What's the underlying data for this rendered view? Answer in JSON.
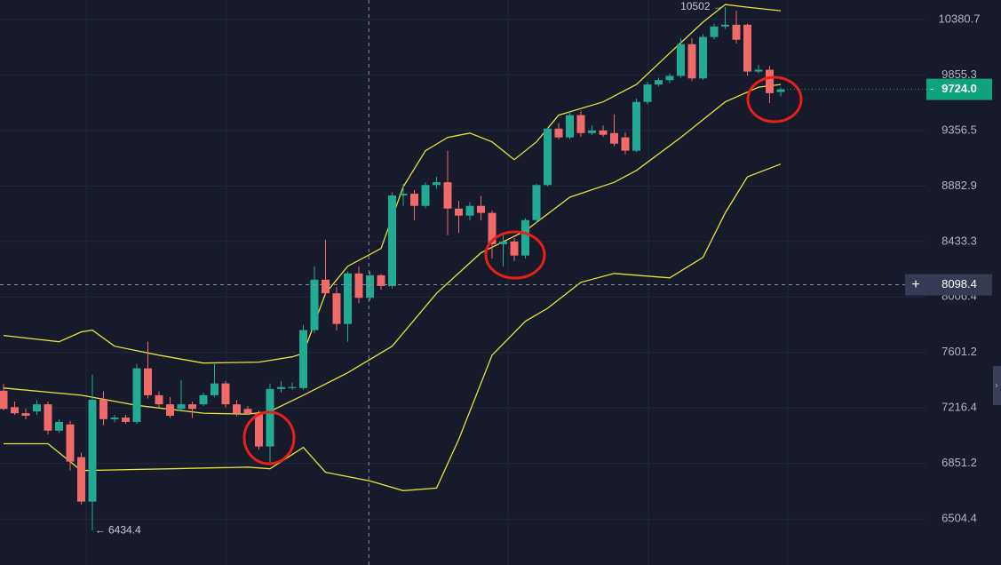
{
  "chart_data": {
    "type": "candlestick",
    "log_scale": true,
    "grid": true,
    "ylim": [
      6230,
      10572
    ],
    "yticks": [
      10380.7,
      9855.3,
      9356.5,
      8882.9,
      8433.3,
      8006.4,
      7601.2,
      7216.4,
      6851.2,
      6504.4
    ],
    "up_color": "#22ab94",
    "down_color": "#f06a6a",
    "series": [
      {
        "open": [
          7334,
          7222,
          7181,
          7193,
          7241,
          7065,
          7106,
          6892,
          6611,
          7272,
          7141,
          7152,
          7123,
          7489,
          7303,
          7241,
          7210,
          7241,
          7241,
          7303,
          7384,
          7241,
          7210,
          7181,
          6961,
          7346,
          7352,
          7352,
          7762,
          8137,
          8034,
          7807,
          8185,
          8000,
          8171,
          8089,
          8804,
          8819,
          8719,
          8891,
          8914,
          8697,
          8640,
          8719,
          8662,
          8412,
          8433,
          8323,
          8604,
          8891,
          9373,
          9296,
          9492,
          9334,
          9357,
          9334,
          9296,
          9181,
          9610,
          9768,
          9808,
          9847,
          10144,
          9824,
          10212,
          10313,
          10330,
          10330,
          9887,
          9904,
          9700
        ],
        "high": [
          7380,
          7260,
          7210,
          7270,
          7260,
          7140,
          7130,
          6920,
          7446,
          7330,
          7170,
          7170,
          7520,
          7678,
          7330,
          7290,
          7408,
          7260,
          7320,
          7520,
          7400,
          7270,
          7230,
          7200,
          7384,
          7400,
          7390,
          7800,
          8240,
          8447,
          8080,
          8200,
          8240,
          8200,
          8180,
          8830,
          8900,
          8850,
          8914,
          8960,
          9181,
          8760,
          8750,
          8800,
          8680,
          8480,
          8460,
          8620,
          8900,
          9380,
          9420,
          9530,
          9530,
          9400,
          9400,
          9500,
          9340,
          9640,
          9790,
          9830,
          9870,
          10200,
          10200,
          10240,
          10340,
          10502,
          10466,
          10340,
          9950,
          9940,
          9740
        ],
        "low": [
          7200,
          7170,
          7140,
          7170,
          7040,
          7050,
          6806,
          6594,
          6435,
          7100,
          7120,
          7110,
          7110,
          7280,
          7220,
          7150,
          7190,
          7150,
          7230,
          7290,
          7220,
          7160,
          7170,
          6940,
          6851,
          7320,
          7340,
          7340,
          7740,
          8020,
          7760,
          7678,
          7960,
          7980,
          8060,
          8070,
          8720,
          8604,
          8700,
          8860,
          8483,
          8500,
          8600,
          8600,
          8300,
          8240,
          8280,
          8300,
          8580,
          8880,
          9280,
          9280,
          9300,
          9320,
          9300,
          9220,
          9150,
          9170,
          9590,
          9750,
          9780,
          9830,
          9800,
          9810,
          10190,
          10290,
          10150,
          9850,
          9870,
          9600,
          9660
        ],
        "close": [
          7210,
          7181,
          7164,
          7241,
          7065,
          7123,
          6863,
          6611,
          7272,
          7141,
          7152,
          7123,
          7489,
          7303,
          7241,
          7164,
          7241,
          7210,
          7303,
          7384,
          7241,
          7181,
          7181,
          6961,
          7346,
          7359,
          7359,
          7762,
          8137,
          8034,
          7807,
          8185,
          8000,
          8171,
          8089,
          8804,
          8819,
          8719,
          8891,
          8914,
          8697,
          8640,
          8719,
          8662,
          8412,
          8433,
          8323,
          8604,
          8891,
          9373,
          9296,
          9492,
          9334,
          9357,
          9319,
          9242,
          9181,
          9610,
          9768,
          9808,
          9847,
          10144,
          9824,
          10212,
          10313,
          10330,
          10186,
          9887,
          9904,
          9689,
          9724
        ]
      }
    ],
    "bands": [
      {
        "color": "#e8e23a",
        "x": [
          0,
          5,
          7,
          8,
          10,
          14,
          18,
          23,
          26,
          27,
          29,
          31,
          34,
          36,
          38,
          40,
          42,
          44,
          46,
          48,
          50,
          54,
          57,
          60,
          63,
          65,
          67,
          70
        ],
        "values": [
          7723,
          7678,
          7749,
          7762,
          7646,
          7582,
          7526,
          7533,
          7570,
          7595,
          8034,
          8240,
          8378,
          8876,
          9181,
          9296,
          9334,
          9257,
          9105,
          9257,
          9492,
          9610,
          9768,
          10059,
          10355,
          10527,
          10501,
          10466
        ]
      },
      {
        "color": "#e8e23a",
        "x": [
          0,
          7,
          12,
          18,
          22,
          24,
          27,
          31,
          35,
          39,
          43,
          47,
          51,
          55,
          57,
          61,
          65,
          68,
          70
        ],
        "values": [
          7352,
          7303,
          7234,
          7181,
          7175,
          7193,
          7303,
          7458,
          7646,
          8034,
          8344,
          8518,
          8790,
          8914,
          9013,
          9296,
          9610,
          9744,
          9768
        ]
      },
      {
        "color": "#e8e23a",
        "x": [
          0,
          4,
          7,
          15,
          22,
          24,
          27,
          29,
          33,
          36,
          39,
          41,
          44,
          47,
          49,
          52,
          55,
          60,
          63,
          65,
          67,
          70
        ],
        "values": [
          6979,
          6979,
          6806,
          6817,
          6828,
          6817,
          6955,
          6795,
          6740,
          6679,
          6695,
          7007,
          7582,
          7826,
          7922,
          8117,
          8185,
          8151,
          8309,
          8662,
          8960,
          9067
        ]
      }
    ],
    "price_line": {
      "value": 9724,
      "label": "9724.0",
      "color": "#0ea37a"
    },
    "crosshair": {
      "value": 8098.4,
      "x": 32.9
    },
    "high_marker": {
      "value": 10502,
      "x": 65
    },
    "low_marker": {
      "value": 6434.4,
      "x": 8
    }
  }
}
